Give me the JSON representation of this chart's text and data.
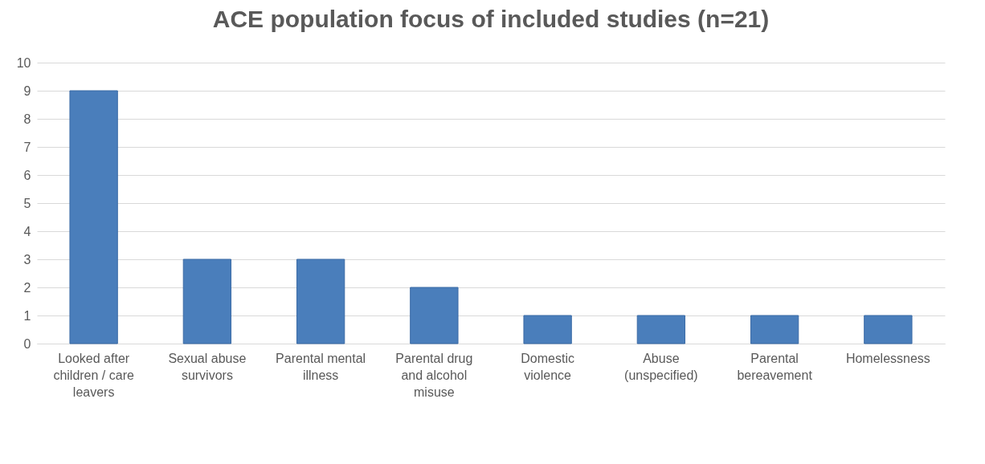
{
  "chart_data": {
    "type": "bar",
    "title": "ACE population focus of included studies (n=21)",
    "categories": [
      "Looked after children / care leavers",
      "Sexual abuse survivors",
      "Parental mental illness",
      "Parental drug and alcohol misuse",
      "Domestic violence",
      "Abuse (unspecified)",
      "Parental bereavement",
      "Homelessness"
    ],
    "values": [
      9,
      3,
      3,
      2,
      1,
      1,
      1,
      1
    ],
    "color": "#4a7ebb",
    "ylim": [
      0,
      10
    ],
    "yticks": [
      0,
      1,
      2,
      3,
      4,
      5,
      6,
      7,
      8,
      9,
      10
    ],
    "grid": "y"
  }
}
